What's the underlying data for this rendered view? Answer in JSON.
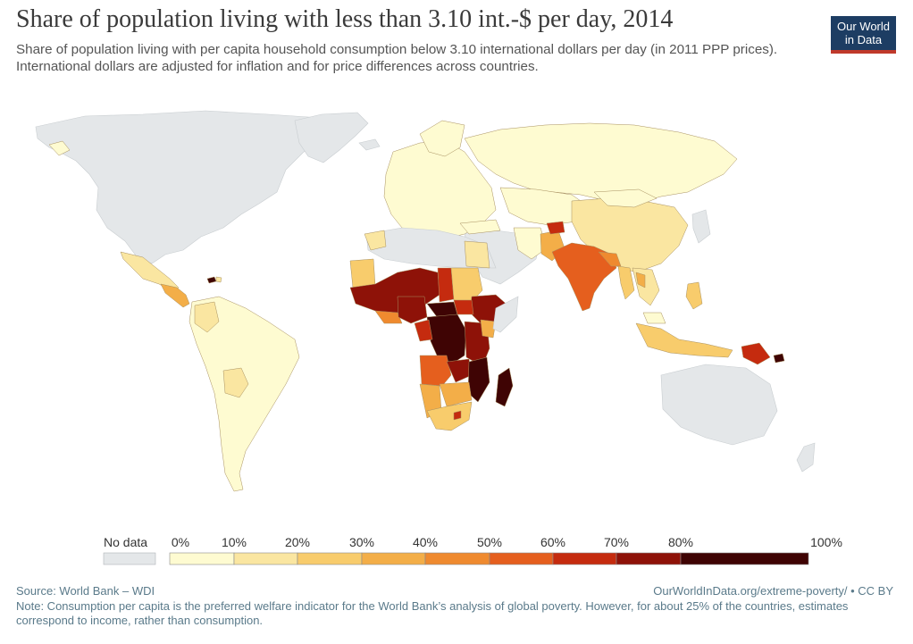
{
  "header": {
    "title": "Share of population living with less than 3.10 int.-$ per day, 2014",
    "subtitle": "Share of population living with per capita household consumption below 3.10 international dollars per day (in 2011 PPP prices). International dollars are adjusted for inflation and for price differences across countries.",
    "logo_line1": "Our World",
    "logo_line2": "in Data"
  },
  "map": {
    "no_data_color": "#e4e7e9",
    "scale_colors": [
      "#fefbd1",
      "#fae6a1",
      "#f8cc6c",
      "#f3ae48",
      "#ef8a2f",
      "#e55f1e",
      "#c52b0f",
      "#8e1208",
      "#3f0404"
    ]
  },
  "legend": {
    "no_data_label": "No data",
    "tick_labels": [
      "0%",
      "10%",
      "20%",
      "30%",
      "40%",
      "50%",
      "60%",
      "70%",
      "80%",
      "100%"
    ]
  },
  "footer": {
    "source": "Source: World Bank – WDI",
    "url": "OurWorldInData.org/extreme-poverty/ • CC BY",
    "note": "Note: Consumption per capita is the preferred welfare indicator for the World Bank’s analysis of global poverty. However, for about 25% of the countries, estimates correspond to income, rather than consumption."
  }
}
